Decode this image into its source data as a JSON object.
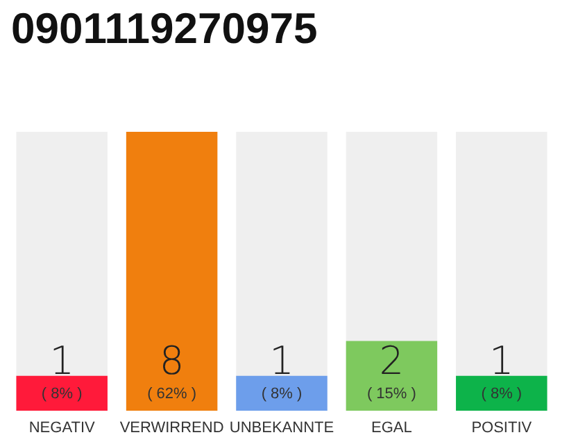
{
  "chart_data": {
    "type": "bar",
    "title": "0901119270975",
    "categories": [
      "NEGATIV",
      "VERWIRREND",
      "UNBEKANNTE",
      "EGAL",
      "POSITIV"
    ],
    "values": [
      1,
      8,
      1,
      2,
      1
    ],
    "colors": [
      "#ff1a3a",
      "#f07f0e",
      "#6d9eeb",
      "#7ec95e",
      "#0db34a"
    ],
    "value_labels": [
      "1\n( 8% )",
      "8\n( 62% )",
      "1\n( 8% )",
      "2\n( 15% )",
      "1\n( 8% )"
    ],
    "tick_labels": "x"
  }
}
